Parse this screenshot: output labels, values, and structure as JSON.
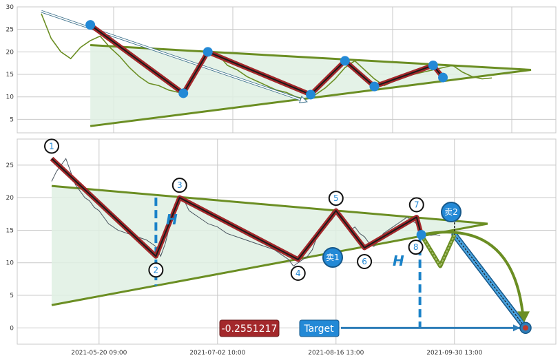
{
  "chart_data": [
    {
      "type": "line",
      "title": "",
      "ylim": [
        2,
        30
      ],
      "y_ticks": [
        5,
        10,
        15,
        20,
        25,
        30
      ],
      "x_range": [
        0,
        100
      ],
      "grid": true,
      "price_series": {
        "x": [
          0,
          2,
          4,
          6,
          8,
          10,
          12,
          14,
          16,
          18,
          20,
          22,
          24,
          26,
          28,
          30,
          32,
          34,
          36,
          38,
          40,
          42,
          44,
          46,
          48,
          50,
          52,
          54,
          56,
          58,
          60,
          62,
          64,
          66,
          68,
          70,
          72,
          74,
          76,
          78,
          80,
          82,
          84,
          86,
          88,
          90,
          92
        ],
        "y": [
          28.5,
          23,
          20,
          18.5,
          21,
          22.5,
          23.5,
          21,
          19,
          16.5,
          14.5,
          13,
          12.5,
          11.5,
          11,
          12.5,
          16,
          20,
          19.5,
          17,
          16,
          14.5,
          13.5,
          12.5,
          11.5,
          11,
          10,
          9.5,
          10.5,
          12,
          14,
          16.5,
          18,
          16,
          14,
          12.5,
          13.5,
          14.5,
          15,
          15.5,
          16,
          16.5,
          17,
          15.5,
          14.5,
          14,
          14.2
        ]
      },
      "zigzag": {
        "x": [
          10,
          29,
          34,
          55,
          62,
          68,
          80,
          82
        ],
        "y": [
          26,
          10.8,
          20,
          10.5,
          18,
          12.3,
          17,
          14.3
        ]
      },
      "triangle": {
        "upper": {
          "x": [
            10,
            100
          ],
          "y": [
            21.5,
            16
          ]
        },
        "lower": {
          "x": [
            10,
            100
          ],
          "y": [
            3.5,
            16
          ]
        }
      },
      "trend_arrow": {
        "x": [
          0,
          54
        ],
        "y": [
          29,
          9
        ]
      }
    },
    {
      "type": "line",
      "ylim": [
        -2.5,
        29
      ],
      "y_ticks": [
        0,
        5,
        10,
        15,
        20,
        25
      ],
      "x_tick_labels": [
        "2021-05-20 09:00",
        "2021-07-02 10:00",
        "2021-08-16 13:00",
        "2021-09-30 13:00"
      ],
      "x_tick_positions": [
        10,
        35,
        60,
        85
      ],
      "grid": true,
      "price_series": {
        "x": [
          0,
          1,
          2,
          3,
          4,
          5,
          6,
          7,
          8,
          9,
          10,
          12,
          14,
          16,
          18,
          20,
          22,
          23,
          24,
          25,
          26,
          27,
          28,
          29,
          30,
          31,
          33,
          35,
          37,
          39,
          41,
          43,
          45,
          47,
          49,
          50,
          51,
          52,
          53,
          54,
          55,
          56,
          57,
          58,
          59,
          60,
          61,
          62,
          63,
          64,
          65,
          66,
          67,
          68,
          69,
          70,
          71,
          72,
          73,
          74,
          75,
          76,
          77,
          78,
          79,
          80,
          81,
          82
        ],
        "y": [
          22.5,
          24,
          25,
          26,
          24,
          22,
          21,
          20,
          19.5,
          18.5,
          18,
          16,
          15,
          14.5,
          14,
          13.5,
          12.5,
          11,
          13,
          16,
          19,
          20,
          19.5,
          18,
          17.5,
          17,
          16,
          15.5,
          14.5,
          14,
          13.5,
          13,
          12.5,
          12,
          11,
          10.5,
          9.5,
          10,
          10.5,
          11,
          12,
          14,
          15,
          16,
          16.5,
          17.5,
          17,
          16,
          15,
          15.5,
          14.5,
          14,
          13,
          12.5,
          13.5,
          14.5,
          15,
          15.5,
          16,
          16.5,
          17,
          16.5,
          16,
          15,
          14.5,
          14.2,
          14.3,
          14.2
        ]
      },
      "zigzag": {
        "x": [
          0,
          22,
          27,
          52,
          60,
          66,
          77,
          78
        ],
        "y": [
          26,
          11,
          20,
          10.5,
          18,
          12.3,
          17,
          14.3
        ]
      },
      "triangle": {
        "upper": {
          "x": [
            0,
            92
          ],
          "y": [
            21.8,
            16
          ]
        },
        "lower": {
          "x": [
            0,
            92
          ],
          "y": [
            3.5,
            16
          ]
        }
      },
      "projection": {
        "x": [
          78,
          82,
          85
        ],
        "y": [
          14.3,
          9.5,
          14.3
        ]
      },
      "target_point": {
        "x": 100,
        "y": 0
      },
      "points": [
        {
          "label": "1",
          "x": 0,
          "y": 26,
          "pos": "above"
        },
        {
          "label": "2",
          "x": 22,
          "y": 11,
          "pos": "below"
        },
        {
          "label": "3",
          "x": 27,
          "y": 20,
          "pos": "above"
        },
        {
          "label": "4",
          "x": 52,
          "y": 10.5,
          "pos": "below"
        },
        {
          "label": "5",
          "x": 60,
          "y": 18,
          "pos": "above"
        },
        {
          "label": "6",
          "x": 66,
          "y": 12.3,
          "pos": "below"
        },
        {
          "label": "7",
          "x": 77,
          "y": 17,
          "pos": "above"
        },
        {
          "label": "8",
          "x": 78,
          "y": 14.3,
          "pos": "below"
        }
      ],
      "annotations": {
        "h_label": "H",
        "sell1": "卖1",
        "sell2": "卖2",
        "value_box": "-0.2551217",
        "target_label": "Target"
      }
    }
  ],
  "colors": {
    "grid": "#c8c8c8",
    "price_top": "#6b8e23",
    "price_bottom": "#4a5560",
    "triangle_fill": "#dff0e3",
    "triangle_line": "#6b8e23",
    "zigzag_outer": "#a3282b",
    "zigzag_inner": "#1a1a1a",
    "pivot": "#2389d6",
    "dash": "#1a82c8",
    "value_box_bg": "#a3282b",
    "target_box_bg": "#2389d6",
    "arrow_green": "#6b8e23",
    "blue_path": "#4aa3df"
  }
}
